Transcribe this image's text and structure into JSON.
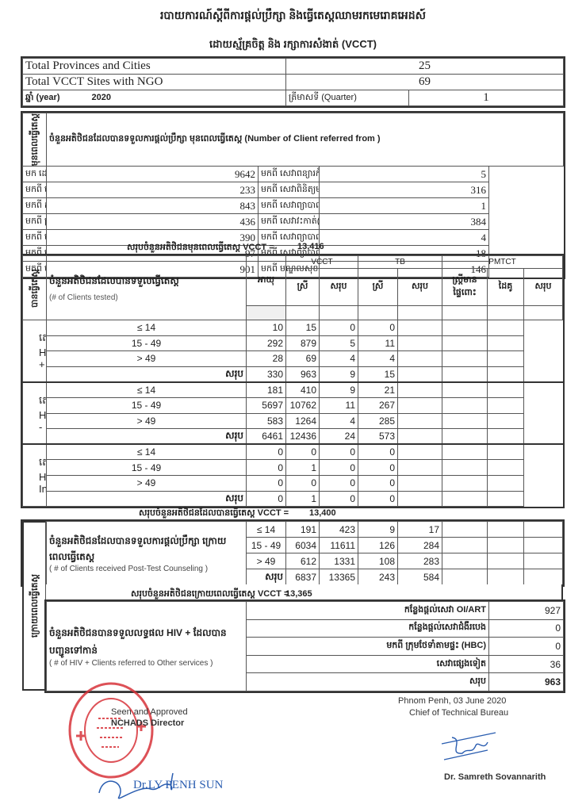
{
  "header": {
    "title": "របាយការណ៍ស្ដីពីការផ្ដល់ប្រឹក្សា និងធ្វើតេស្តឈាមរកមេរោគអេដស៍",
    "subtitle": "ដោយស្ម័គ្រចិត្ត និង រក្សាការសំងាត់ (VCCT)"
  },
  "summary": {
    "provinces_label": "Total Provinces and Cities",
    "provinces_value": "25",
    "sites_label": "Total VCCT Sites with NGO",
    "sites_value": "69",
    "year_label": "ឆ្នាំ (year)",
    "year_value": "2020",
    "quarter_label": "ត្រីមាសទី (Quarter)",
    "quarter_value": "1"
  },
  "pre_test": {
    "section_label": "មុនពេលធ្វើតេស្ត",
    "heading": "ចំនួនអតិថិជនដែលបានទទួលការផ្ដល់ប្រឹក្សា មុនពេលធ្វើតេស្ត (Number of Client referred from )",
    "rows": [
      {
        "left_label": "មក ដោយខ្លួនឯង( Self referred )",
        "left_value": "9642",
        "right_label": "មកពី សេវាពន្យារកំណើត( BS/FP )",
        "right_value": "5"
      },
      {
        "left_label": "មកពី សេវាព្យាបាលជំងឺកាមរោគ( STD Clinic )",
        "left_value": "233",
        "right_label": "មកពី សេវាពិនិត្យមុនពេលសំរាល(ANC)",
        "right_value": "316"
      },
      {
        "left_label": "មកពី កម្មវិធីរបេង (TB Program)",
        "left_value": "843",
        "right_label": "មកពី សេវាព្យាបាលជំងឺស្បែក(Skin Care)",
        "right_value": "1"
      },
      {
        "left_label": "មកពី ក្រុមថែទាំតាមផ្ទះ(HBC) និង NGO",
        "left_value": "436",
        "right_label": "មកពី សេវាវះកាត់(Surgical Service)",
        "right_value": "384"
      },
      {
        "left_label": "មកពី សេវាព្យាបាលជំងឺទូទៅ (General Medicine)",
        "left_value": "390",
        "right_label": "មកពី សេវាព្យាបាលជំងឺមាត់-ធ្មេញ(Dental)",
        "right_value": "4"
      },
      {
        "left_label": "មកពី សេវាព្យាបាលជំងឺកុមារ (Pediatric Care)",
        "left_value": "97",
        "right_label": "មកពី សេវាព្យាបាលជំងឺឆ្លង(Infection Disease)",
        "right_value": "18"
      },
      {
        "left_label": "មកពី មន្ទីរសម្ភព (Maternity)",
        "left_value": "901",
        "right_label": "មកពី មណ្ឌលសុខភាព(Heal Center)",
        "right_value": "146"
      }
    ],
    "total_label": "សរុបចំនួនអតិថិជនមុនពេលធ្វើតេស្ត VCCT =",
    "total_value": "13,416"
  },
  "tested": {
    "section_label": "បានធ្វើតេស្ត",
    "heading": "ចំនួនអតិថិជនដែលបានទទួលធ្វើតេស្ត",
    "heading_en": "(# of Clients tested)",
    "age_header": "អាយុ",
    "group_headers": {
      "vcct": "VCCT",
      "tb": "TB",
      "pmtct": "PMTCT"
    },
    "sub_headers": [
      "ស្រី",
      "សរុប",
      "ស្រី",
      "សរុប",
      "ស្ត្រីមានផ្ទៃពោះ",
      "ដៃគូ",
      "សរុប"
    ],
    "groups": [
      {
        "label": "តេស្ត HIV +",
        "rows": [
          [
            "≤ 14",
            "10",
            "15",
            "0",
            "0",
            "",
            "",
            ""
          ],
          [
            "15 - 49",
            "292",
            "879",
            "5",
            "11",
            "",
            "",
            ""
          ],
          [
            "> 49",
            "28",
            "69",
            "4",
            "4",
            "",
            "",
            ""
          ],
          [
            "សរុប",
            "330",
            "963",
            "9",
            "15",
            "",
            "",
            ""
          ]
        ]
      },
      {
        "label": "តេស្ត HIV -",
        "rows": [
          [
            "≤ 14",
            "181",
            "410",
            "9",
            "21",
            "",
            "",
            ""
          ],
          [
            "15 - 49",
            "5697",
            "10762",
            "11",
            "267",
            "",
            "",
            ""
          ],
          [
            "> 49",
            "583",
            "1264",
            "4",
            "285",
            "",
            "",
            ""
          ],
          [
            "សរុប",
            "6461",
            "12436",
            "24",
            "573",
            "",
            "",
            ""
          ]
        ]
      },
      {
        "label": "តេស្ត HIV Indeterminate",
        "rows": [
          [
            "≤ 14",
            "0",
            "0",
            "0",
            "0",
            "",
            "",
            ""
          ],
          [
            "15 - 49",
            "0",
            "1",
            "0",
            "0",
            "",
            "",
            ""
          ],
          [
            "> 49",
            "0",
            "0",
            "0",
            "0",
            "",
            "",
            ""
          ],
          [
            "សរុប",
            "0",
            "1",
            "0",
            "0",
            "",
            "",
            ""
          ]
        ]
      }
    ],
    "total_label": "សរុបចំនួនអតិថិជនដែលបានធ្វើតេស្ត VCCT =",
    "total_value": "13,400"
  },
  "post_test": {
    "section_label": "ក្រោយពេលធ្វើតេស្ត",
    "heading": "ចំនួនអតិថិជនដែលបានទទួលការផ្ដល់ប្រឹក្សា ក្រោយពេលធ្វើតេស្ត",
    "heading_en": "( # of Clients received Post-Test Counseling )",
    "rows": [
      [
        "≤ 14",
        "191",
        "423",
        "9",
        "17",
        "",
        "",
        ""
      ],
      [
        "15 - 49",
        "6034",
        "11611",
        "126",
        "284",
        "",
        "",
        ""
      ],
      [
        "> 49",
        "612",
        "1331",
        "108",
        "283",
        "",
        "",
        ""
      ],
      [
        "សរុប",
        "6837",
        "13365",
        "243",
        "584",
        "",
        "",
        ""
      ]
    ],
    "total_label": "សរុបចំនួនអតិថិជនក្រោយពេលធ្វើតេស្ត VCCT =",
    "total_value": "13,365",
    "referral_heading": "ចំនួនអតិថិជនបានទទួលលទ្ធផល HIV + ដែលបានបញ្ជូនទៅកាន់",
    "referral_heading_en": "( # of HIV + Clients referred to Other services )",
    "referrals": [
      {
        "label": "កន្លែងផ្ដល់សេវា OI/ART",
        "value": "927"
      },
      {
        "label": "កន្លែងផ្ដល់សេវាជំងឺរបេង",
        "value": "0"
      },
      {
        "label": "មកពី ក្រុមថែទាំតាមផ្ទះ (HBC)",
        "value": "0"
      },
      {
        "label": "សេវាផ្សេងទៀត",
        "value": "36"
      },
      {
        "label": "សរុប",
        "value": "963"
      }
    ]
  },
  "footer": {
    "approved_label": "Seen and Approved",
    "director_title": "NCHADS Director",
    "director_name": "Dr.LY PENH SUN",
    "place_date": "Phnom Penh, 03  June 2020",
    "chief_title": "Chief of Technical Bureau",
    "chief_name": "Dr. Samreth Sovannarith",
    "stamp_color": "#d8333a",
    "signature_color": "#2a5db0"
  }
}
